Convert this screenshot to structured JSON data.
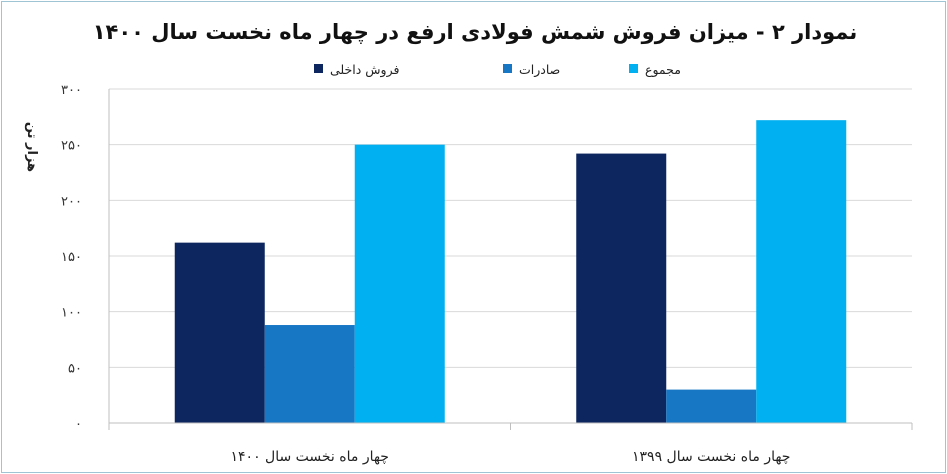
{
  "chart_data": {
    "type": "bar",
    "title": "نمودار ۲ - میزان فروش شمش فولادی ارفع در چهار ماه نخست سال ۱۴۰۰",
    "xlabel": "",
    "ylabel": "هزار تن",
    "categories": [
      "چهار ماه نخست سال ۱۴۰۰",
      "چهار ماه نخست سال ۱۳۹۹"
    ],
    "series": [
      {
        "name": "فروش داخلی",
        "values": [
          162,
          242
        ],
        "color": "#0d2660"
      },
      {
        "name": "صادرات",
        "values": [
          88,
          30
        ],
        "color": "#1777c4"
      },
      {
        "name": "مجموع",
        "values": [
          250,
          272
        ],
        "color": "#00b0f0"
      }
    ],
    "ylim": [
      0,
      300
    ],
    "yticks": [
      0,
      50,
      100,
      150,
      200,
      250,
      300
    ],
    "ytick_labels": [
      "۰",
      "۵۰",
      "۱۰۰",
      "۱۵۰",
      "۲۰۰",
      "۲۵۰",
      "۳۰۰"
    ],
    "grid": true,
    "legend_position": "top"
  }
}
